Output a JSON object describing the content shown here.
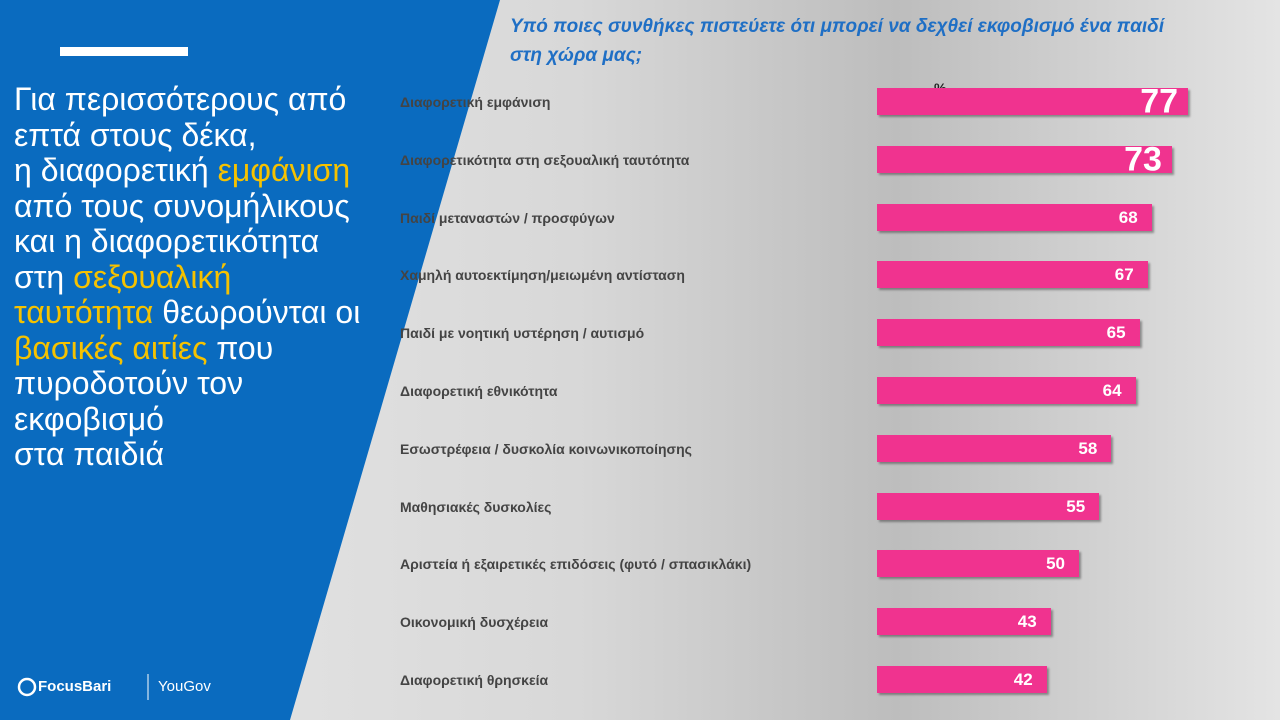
{
  "headline": {
    "lines": [
      [
        {
          "text": "Για περισσότερους από",
          "highlight": false
        }
      ],
      [
        {
          "text": "επτά στους δέκα,",
          "highlight": false
        }
      ],
      [
        {
          "text": "η διαφορετική ",
          "highlight": false
        },
        {
          "text": "εμφάνιση",
          "highlight": true
        }
      ],
      [
        {
          "text": "από τους συνομήλικους",
          "highlight": false
        }
      ],
      [
        {
          "text": "και η διαφορετικότητα",
          "highlight": false
        }
      ],
      [
        {
          "text": "στη ",
          "highlight": false
        },
        {
          "text": "σεξουαλική",
          "highlight": true
        }
      ],
      [
        {
          "text": "ταυτότητα",
          "highlight": true
        },
        {
          "text": " θεωρούνται οι",
          "highlight": false
        }
      ],
      [
        {
          "text": "βασικές αιτίες",
          "highlight": true
        },
        {
          "text": " που",
          "highlight": false
        }
      ],
      [
        {
          "text": "πυροδοτούν τον",
          "highlight": false
        }
      ],
      [
        {
          "text": "εκφοβισμό",
          "highlight": false
        }
      ],
      [
        {
          "text": "στα παιδιά",
          "highlight": false
        }
      ]
    ]
  },
  "footer": {
    "logos": [
      "FocusBari",
      "YouGov"
    ]
  },
  "chart_data": {
    "type": "bar",
    "orientation": "horizontal",
    "title": "Υπό ποιες συνθήκες πιστεύετε ότι μπορεί να δεχθεί εκφοβισμό ένα παιδί στη χώρα μας;",
    "unit_label": "%",
    "categories": [
      "Διαφορετική εμφάνιση",
      "Διαφορετικότητα στη σεξουαλική ταυτότητα",
      "Παιδί μεταναστών / προσφύγων",
      "Χαμηλή αυτοεκτίμηση/μειωμένη αντίσταση",
      "Παιδί με νοητική υστέρηση / αυτισμό",
      "Διαφορετική εθνικότητα",
      "Εσωστρέφεια / δυσκολία κοινωνικοποίησης",
      "Μαθησιακές δυσκολίες",
      "Αριστεία ή εξαιρετικές επιδόσεις (φυτό / σπασικλάκι)",
      "Οικονομική δυσχέρεια",
      "Διαφορετική θρησκεία"
    ],
    "values": [
      77,
      73,
      68,
      67,
      65,
      64,
      58,
      55,
      50,
      43,
      42
    ],
    "color": "#f0338f"
  }
}
